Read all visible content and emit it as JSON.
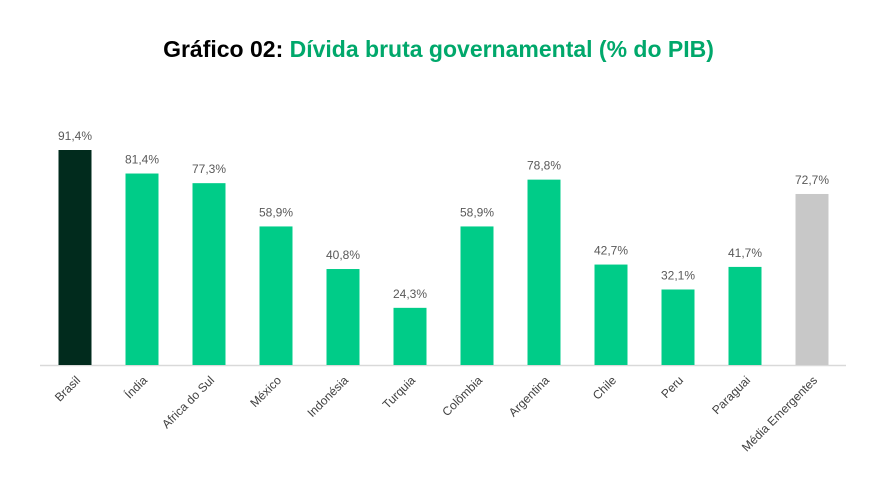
{
  "chart_data": {
    "type": "bar",
    "title_prefix": "Gráfico 02:",
    "title": "Dívida bruta governamental (% do PIB)",
    "categories": [
      "Brasil",
      "Índia",
      "Africa do Sul",
      "México",
      "Indonésia",
      "Turquia",
      "Colômbia",
      "Argentina",
      "Chile",
      "Peru",
      "Paraguai",
      "Média Emergentes"
    ],
    "values": [
      91.4,
      81.4,
      77.3,
      58.9,
      40.8,
      24.3,
      58.9,
      78.8,
      42.7,
      32.1,
      41.7,
      72.7
    ],
    "labels": [
      "91,4%",
      "81,4%",
      "77,3%",
      "58,9%",
      "40,8%",
      "24,3%",
      "58,9%",
      "78,8%",
      "42,7%",
      "32,1%",
      "41,7%",
      "72,7%"
    ],
    "colors": [
      "#012b1d",
      "#00cc88",
      "#00cc88",
      "#00cc88",
      "#00cc88",
      "#00cc88",
      "#00cc88",
      "#00cc88",
      "#00cc88",
      "#00cc88",
      "#00cc88",
      "#c8c8c8"
    ],
    "ylim": [
      0,
      100
    ],
    "grid": false,
    "legend": "none"
  }
}
